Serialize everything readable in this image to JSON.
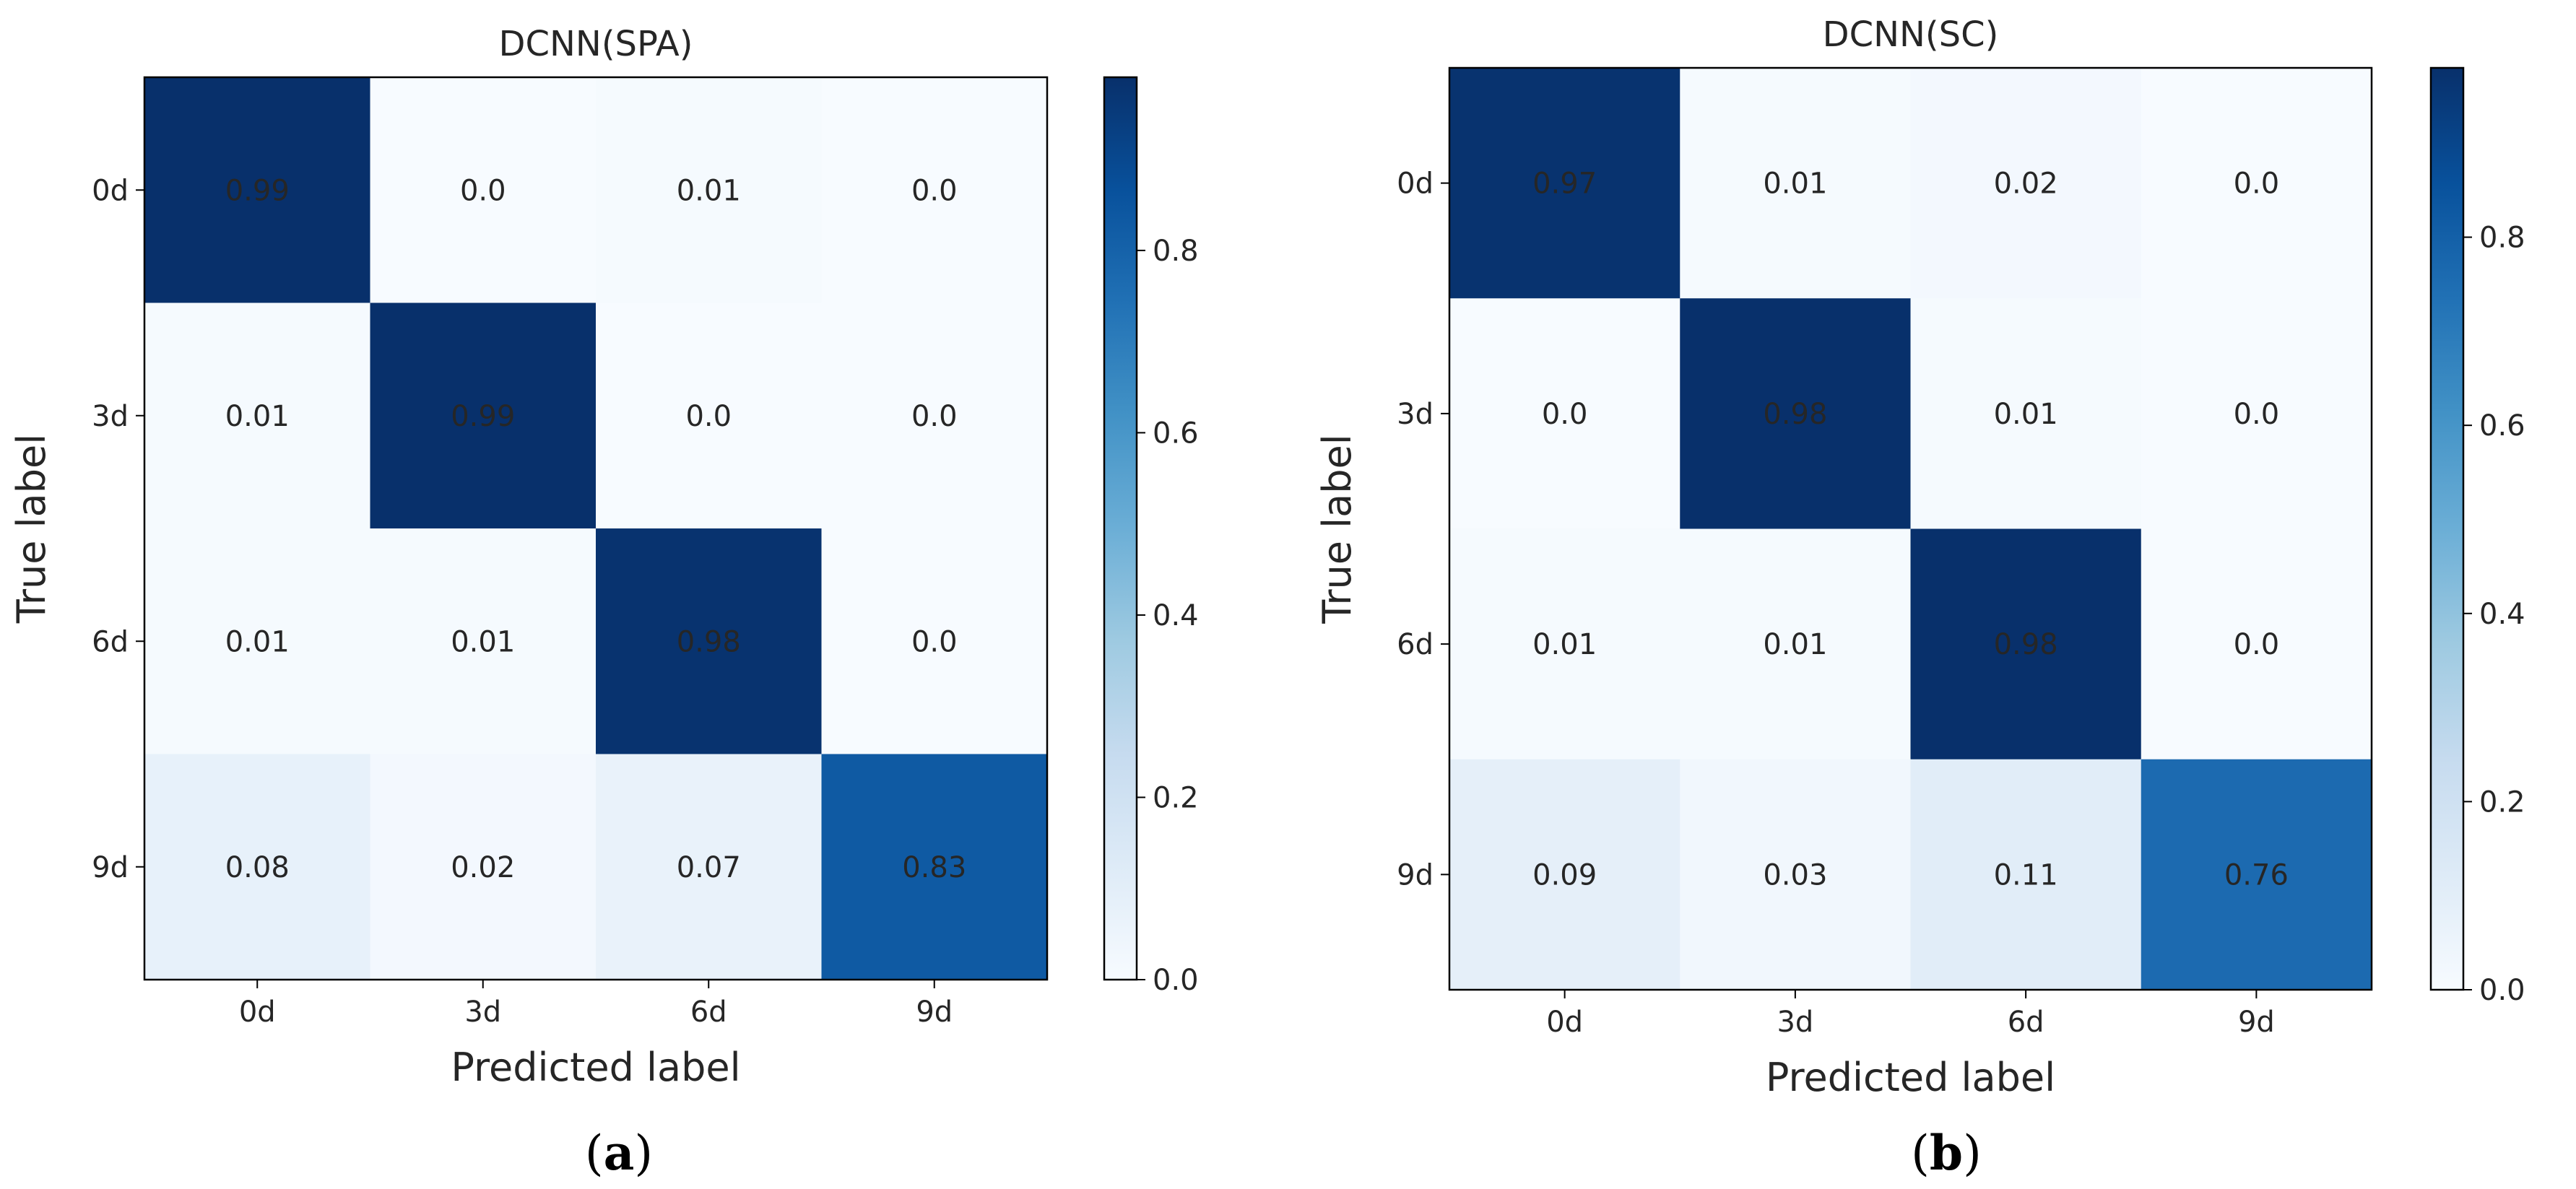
{
  "chart_data": [
    {
      "type": "heatmap",
      "title": "DCNN(SPA)",
      "xlabel": "Predicted label",
      "ylabel": "True label",
      "x_categories": [
        "0d",
        "3d",
        "6d",
        "9d"
      ],
      "y_categories": [
        "0d",
        "3d",
        "6d",
        "9d"
      ],
      "values": [
        [
          0.99,
          0.0,
          0.01,
          0.0
        ],
        [
          0.01,
          0.99,
          0.0,
          0.0
        ],
        [
          0.01,
          0.01,
          0.98,
          0.0
        ],
        [
          0.08,
          0.02,
          0.07,
          0.83
        ]
      ],
      "value_labels": [
        [
          "0.99",
          "0.0",
          "0.01",
          "0.0"
        ],
        [
          "0.01",
          "0.99",
          "0.0",
          "0.0"
        ],
        [
          "0.01",
          "0.01",
          "0.98",
          "0.0"
        ],
        [
          "0.08",
          "0.02",
          "0.07",
          "0.83"
        ]
      ],
      "colorbar": {
        "range": [
          0.0,
          0.99
        ],
        "ticks": [
          0.0,
          0.2,
          0.4,
          0.6,
          0.8
        ],
        "tick_labels": [
          "0.0",
          "0.2",
          "0.4",
          "0.6",
          "0.8"
        ],
        "colormap": "Blues"
      },
      "caption_prefix": "(",
      "caption_letter": "a",
      "caption_suffix": ")"
    },
    {
      "type": "heatmap",
      "title": "DCNN(SC)",
      "xlabel": "Predicted label",
      "ylabel": "True label",
      "x_categories": [
        "0d",
        "3d",
        "6d",
        "9d"
      ],
      "y_categories": [
        "0d",
        "3d",
        "6d",
        "9d"
      ],
      "values": [
        [
          0.97,
          0.01,
          0.02,
          0.0
        ],
        [
          0.0,
          0.98,
          0.01,
          0.0
        ],
        [
          0.01,
          0.01,
          0.98,
          0.0
        ],
        [
          0.09,
          0.03,
          0.11,
          0.76
        ]
      ],
      "value_labels": [
        [
          "0.97",
          "0.01",
          "0.02",
          "0.0"
        ],
        [
          "0.0",
          "0.98",
          "0.01",
          "0.0"
        ],
        [
          "0.01",
          "0.01",
          "0.98",
          "0.0"
        ],
        [
          "0.09",
          "0.03",
          "0.11",
          "0.76"
        ]
      ],
      "colorbar": {
        "range": [
          0.0,
          0.98
        ],
        "ticks": [
          0.0,
          0.2,
          0.4,
          0.6,
          0.8
        ],
        "tick_labels": [
          "0.0",
          "0.2",
          "0.4",
          "0.6",
          "0.8"
        ],
        "colormap": "Blues"
      },
      "caption_prefix": "(",
      "caption_letter": "b",
      "caption_suffix": ")"
    }
  ]
}
